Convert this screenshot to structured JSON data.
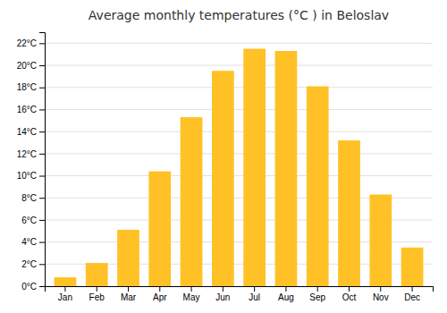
{
  "chart_data": {
    "type": "bar",
    "title": "Average monthly temperatures (°C ) in Beloslav",
    "categories": [
      "Jan",
      "Feb",
      "Mar",
      "Apr",
      "May",
      "Jun",
      "Jul",
      "Aug",
      "Sep",
      "Oct",
      "Nov",
      "Dec"
    ],
    "values": [
      0.8,
      2.1,
      5.1,
      10.4,
      15.3,
      19.5,
      21.5,
      21.3,
      18.1,
      13.2,
      8.3,
      3.5
    ],
    "color": "#FFC125",
    "ylim": [
      0,
      23
    ],
    "yticks": [
      {
        "value": 0,
        "label": "0°C"
      },
      {
        "value": 2,
        "label": "2°C"
      },
      {
        "value": 4,
        "label": "4°C"
      },
      {
        "value": 6,
        "label": "6°C"
      },
      {
        "value": 8,
        "label": "8°C"
      },
      {
        "value": 10,
        "label": "10°C"
      },
      {
        "value": 12,
        "label": "12°C"
      },
      {
        "value": 14,
        "label": "14°C"
      },
      {
        "value": 16,
        "label": "16°C"
      },
      {
        "value": 18,
        "label": "18°C"
      },
      {
        "value": 20,
        "label": "20°C"
      },
      {
        "value": 22,
        "label": "22°C"
      }
    ],
    "grid": true
  }
}
